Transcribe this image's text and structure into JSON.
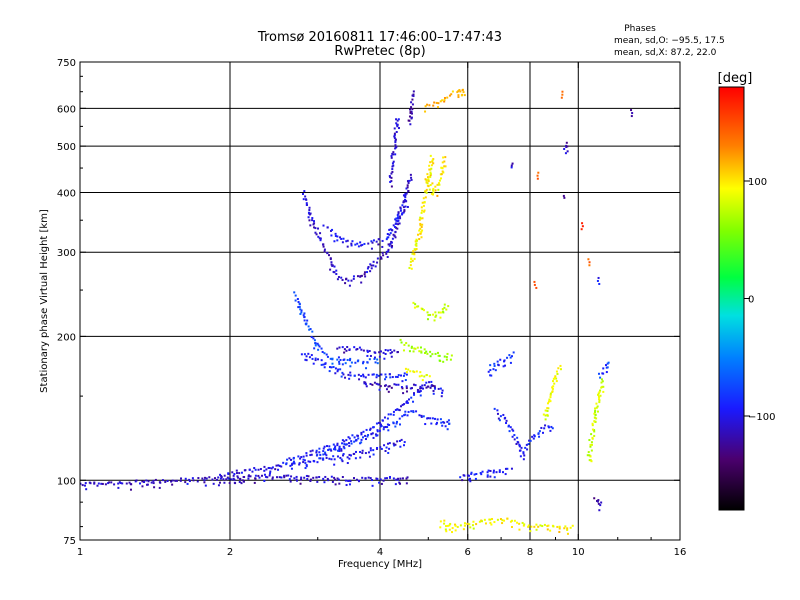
{
  "chart_data": {
    "type": "scatter",
    "title": "Tromsø 20160811 17:46:00–17:47:43",
    "subtitle": "RwPretec (8p)",
    "xlabel": "Frequency [MHz]",
    "ylabel": "Stationary phase Virtual Height [km]",
    "x_scale": "log",
    "y_scale": "log",
    "xlim": [
      1,
      16
    ],
    "ylim": [
      75,
      750
    ],
    "x_ticks": [
      "1",
      "2",
      "4",
      "6",
      "8",
      "10",
      "16"
    ],
    "x_tick_values": [
      1,
      2,
      4,
      6,
      8,
      10,
      16
    ],
    "y_ticks": [
      "75",
      "100",
      "200",
      "300",
      "400",
      "500",
      "600",
      "750"
    ],
    "y_tick_values": [
      75,
      100,
      200,
      300,
      400,
      500,
      600,
      750
    ],
    "grid_x": [
      2,
      4,
      6,
      8,
      10
    ],
    "grid_y": [
      100,
      200,
      300,
      400,
      500,
      600
    ],
    "grid": true,
    "stats": {
      "heading": "Phases",
      "line_o": "mean, sd,O: −95.5, 17.5",
      "line_x": "mean, sd,X:  87.2, 22.0"
    },
    "colorbar": {
      "label": "[deg]",
      "range": [
        -180,
        180
      ],
      "ticks": [
        "100",
        "0",
        "−100"
      ],
      "tick_values": [
        100,
        0,
        -100
      ]
    },
    "point_color_by": "phase (deg)",
    "segments": [
      {
        "phase": -110,
        "points": [
          [
            1.0,
            98
          ],
          [
            1.3,
            99
          ],
          [
            1.6,
            100
          ],
          [
            2.0,
            101
          ],
          [
            2.5,
            101.5
          ],
          [
            3.0,
            101
          ],
          [
            3.5,
            100.5
          ],
          [
            4.0,
            100.5
          ],
          [
            4.6,
            101
          ]
        ]
      },
      {
        "phase": -100,
        "points": [
          [
            1.9,
            102
          ],
          [
            2.2,
            105
          ],
          [
            2.6,
            108
          ],
          [
            3.0,
            110
          ],
          [
            3.5,
            113
          ],
          [
            4.0,
            117
          ],
          [
            4.5,
            121
          ]
        ]
      },
      {
        "phase": -95,
        "points": [
          [
            2.6,
            110
          ],
          [
            3.0,
            115
          ],
          [
            3.4,
            121
          ],
          [
            3.8,
            128
          ],
          [
            4.2,
            137
          ],
          [
            4.6,
            148
          ],
          [
            5.0,
            160
          ],
          [
            5.4,
            153
          ]
        ]
      },
      {
        "phase": -90,
        "points": [
          [
            3.0,
            113
          ],
          [
            3.4,
            118
          ],
          [
            3.8,
            124
          ],
          [
            4.2,
            130
          ],
          [
            4.6,
            140
          ],
          [
            5.0,
            135
          ],
          [
            5.6,
            132
          ]
        ]
      },
      {
        "phase": -75,
        "points": [
          [
            2.7,
            245
          ],
          [
            2.8,
            225
          ],
          [
            2.9,
            205
          ],
          [
            3.0,
            190
          ],
          [
            3.2,
            180
          ],
          [
            3.6,
            177
          ],
          [
            4.0,
            178
          ]
        ]
      },
      {
        "phase": -95,
        "points": [
          [
            2.8,
            185
          ],
          [
            3.1,
            175
          ],
          [
            3.4,
            168
          ],
          [
            3.8,
            165
          ],
          [
            4.2,
            166
          ],
          [
            4.6,
            166
          ]
        ]
      },
      {
        "phase": -105,
        "points": [
          [
            3.3,
            190
          ],
          [
            3.6,
            188
          ],
          [
            4.0,
            186
          ],
          [
            4.4,
            186
          ]
        ]
      },
      {
        "phase": -115,
        "points": [
          [
            3.7,
            160
          ],
          [
            4.0,
            158
          ],
          [
            4.5,
            157
          ],
          [
            4.9,
            157
          ],
          [
            5.2,
            158
          ]
        ]
      },
      {
        "phase": -110,
        "points": [
          [
            2.8,
            400
          ],
          [
            2.9,
            360
          ],
          [
            3.0,
            330
          ],
          [
            3.1,
            305
          ],
          [
            3.2,
            285
          ],
          [
            3.3,
            265
          ],
          [
            3.5,
            262
          ],
          [
            3.7,
            270
          ],
          [
            3.9,
            285
          ],
          [
            4.1,
            300
          ],
          [
            4.3,
            330
          ],
          [
            4.5,
            380
          ],
          [
            4.6,
            440
          ]
        ]
      },
      {
        "phase": -100,
        "points": [
          [
            3.1,
            340
          ],
          [
            3.3,
            325
          ],
          [
            3.5,
            315
          ],
          [
            3.7,
            312
          ],
          [
            3.9,
            315
          ],
          [
            4.1,
            320
          ],
          [
            4.3,
            345
          ],
          [
            4.5,
            400
          ]
        ]
      },
      {
        "phase": -105,
        "points": [
          [
            4.2,
            420
          ],
          [
            4.25,
            480
          ],
          [
            4.3,
            540
          ],
          [
            4.35,
            580
          ]
        ]
      },
      {
        "phase": -115,
        "points": [
          [
            4.6,
            560
          ],
          [
            4.65,
            640
          ],
          [
            4.7,
            655
          ]
        ]
      },
      {
        "phase": 95,
        "points": [
          [
            4.6,
            280
          ],
          [
            4.8,
            330
          ],
          [
            4.9,
            380
          ],
          [
            5.0,
            430
          ],
          [
            5.1,
            480
          ]
        ]
      },
      {
        "phase": 100,
        "points": [
          [
            5.0,
            430
          ],
          [
            5.15,
            400
          ],
          [
            5.3,
            430
          ],
          [
            5.4,
            480
          ]
        ]
      },
      {
        "phase": 80,
        "points": [
          [
            4.7,
            235
          ],
          [
            4.9,
            225
          ],
          [
            5.1,
            220
          ],
          [
            5.3,
            225
          ],
          [
            5.5,
            235
          ]
        ]
      },
      {
        "phase": 70,
        "points": [
          [
            4.4,
            195
          ],
          [
            4.7,
            190
          ],
          [
            5.0,
            185
          ],
          [
            5.3,
            183
          ],
          [
            5.6,
            182
          ]
        ]
      },
      {
        "phase": 85,
        "points": [
          [
            4.5,
            170
          ],
          [
            4.8,
            167
          ],
          [
            5.1,
            165
          ]
        ]
      },
      {
        "phase": -100,
        "points": [
          [
            5.8,
            102
          ],
          [
            6.2,
            103
          ],
          [
            6.6,
            104
          ],
          [
            7.0,
            104.5
          ],
          [
            7.4,
            105
          ]
        ]
      },
      {
        "phase": -85,
        "points": [
          [
            6.6,
            170
          ],
          [
            6.8,
            175
          ],
          [
            7.0,
            178
          ],
          [
            7.3,
            182
          ],
          [
            7.5,
            186
          ]
        ]
      },
      {
        "phase": -90,
        "points": [
          [
            7.8,
            115
          ],
          [
            8.2,
            125
          ],
          [
            8.6,
            130
          ],
          [
            9.0,
            128
          ]
        ]
      },
      {
        "phase": -95,
        "points": [
          [
            6.8,
            140
          ],
          [
            7.1,
            135
          ],
          [
            7.4,
            125
          ],
          [
            7.8,
            112
          ]
        ]
      },
      {
        "phase": 90,
        "points": [
          [
            8.6,
            135
          ],
          [
            8.8,
            150
          ],
          [
            9.0,
            165
          ],
          [
            9.3,
            175
          ]
        ]
      },
      {
        "phase": 80,
        "points": [
          [
            10.5,
            110
          ],
          [
            10.8,
            135
          ],
          [
            11.0,
            150
          ],
          [
            11.2,
            165
          ]
        ]
      },
      {
        "phase": -80,
        "points": [
          [
            11.0,
            165
          ],
          [
            11.3,
            170
          ],
          [
            11.6,
            178
          ]
        ]
      },
      {
        "phase": -115,
        "points": [
          [
            9.4,
            490
          ],
          [
            9.45,
            510
          ]
        ]
      },
      {
        "phase": -120,
        "points": [
          [
            9.4,
            390
          ],
          [
            9.45,
            395
          ]
        ]
      },
      {
        "phase": -110,
        "points": [
          [
            7.3,
            450
          ],
          [
            7.35,
            465
          ]
        ]
      },
      {
        "phase": -120,
        "points": [
          [
            12.8,
            595
          ]
        ]
      },
      {
        "phase": 130,
        "points": [
          [
            9.3,
            650
          ]
        ]
      },
      {
        "phase": 160,
        "points": [
          [
            10.2,
            345
          ]
        ]
      },
      {
        "phase": 140,
        "points": [
          [
            8.3,
            440
          ]
        ]
      },
      {
        "phase": 150,
        "points": [
          [
            8.2,
            260
          ]
        ]
      },
      {
        "phase": 140,
        "points": [
          [
            10.5,
            290
          ]
        ]
      },
      {
        "phase": -95,
        "points": [
          [
            11.0,
            265
          ]
        ]
      },
      {
        "phase": -120,
        "points": [
          [
            10.8,
            92
          ],
          [
            11.0,
            90
          ],
          [
            11.2,
            88
          ]
        ]
      },
      {
        "phase": 95,
        "points": [
          [
            5.3,
            82
          ],
          [
            5.6,
            80
          ],
          [
            7.1,
            83
          ],
          [
            8.0,
            80
          ],
          [
            9.8,
            80
          ]
        ]
      },
      {
        "phase": 110,
        "points": [
          [
            5.8,
            650
          ],
          [
            5.9,
            660
          ],
          [
            4.9,
            600
          ]
        ]
      }
    ]
  }
}
